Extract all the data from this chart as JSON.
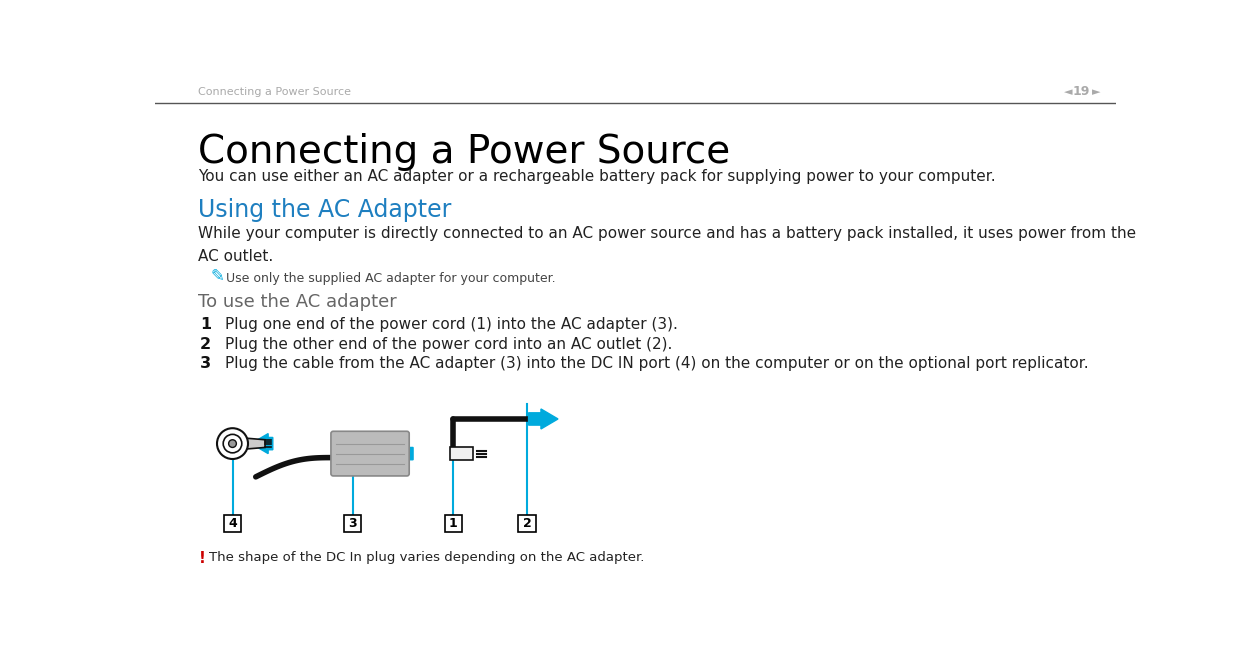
{
  "bg_color": "#ffffff",
  "header_text": "Connecting a Power Source",
  "header_page": "19",
  "header_color": "#aaaaaa",
  "title": "Connecting a Power Source",
  "title_font": 28,
  "subtitle": "You can use either an AC adapter or a rechargeable battery pack for supplying power to your computer.",
  "section_heading": "Using the AC Adapter",
  "section_color": "#1e7fc0",
  "section_font": 17,
  "body1": "While your computer is directly connected to an AC power source and has a battery pack installed, it uses power from the\nAC outlet.",
  "note_text": "Use only the supplied AC adapter for your computer.",
  "subheading": "To use the AC adapter",
  "subheading_color": "#666666",
  "steps": [
    {
      "num": "1",
      "text": "Plug one end of the power cord (1) into the AC adapter (3)."
    },
    {
      "num": "2",
      "text": "Plug the other end of the power cord into an AC outlet (2)."
    },
    {
      "num": "3",
      "text": "Plug the cable from the AC adapter (3) into the DC IN port (4) on the computer or on the optional port replicator."
    }
  ],
  "warning_text": "The shape of the DC In plug varies depending on the AC adapter.",
  "warning_color": "#cc0000",
  "cyan_color": "#00aadd",
  "adapter_color": "#bbbbbb",
  "dark_color": "#333333",
  "line_color": "#111111"
}
